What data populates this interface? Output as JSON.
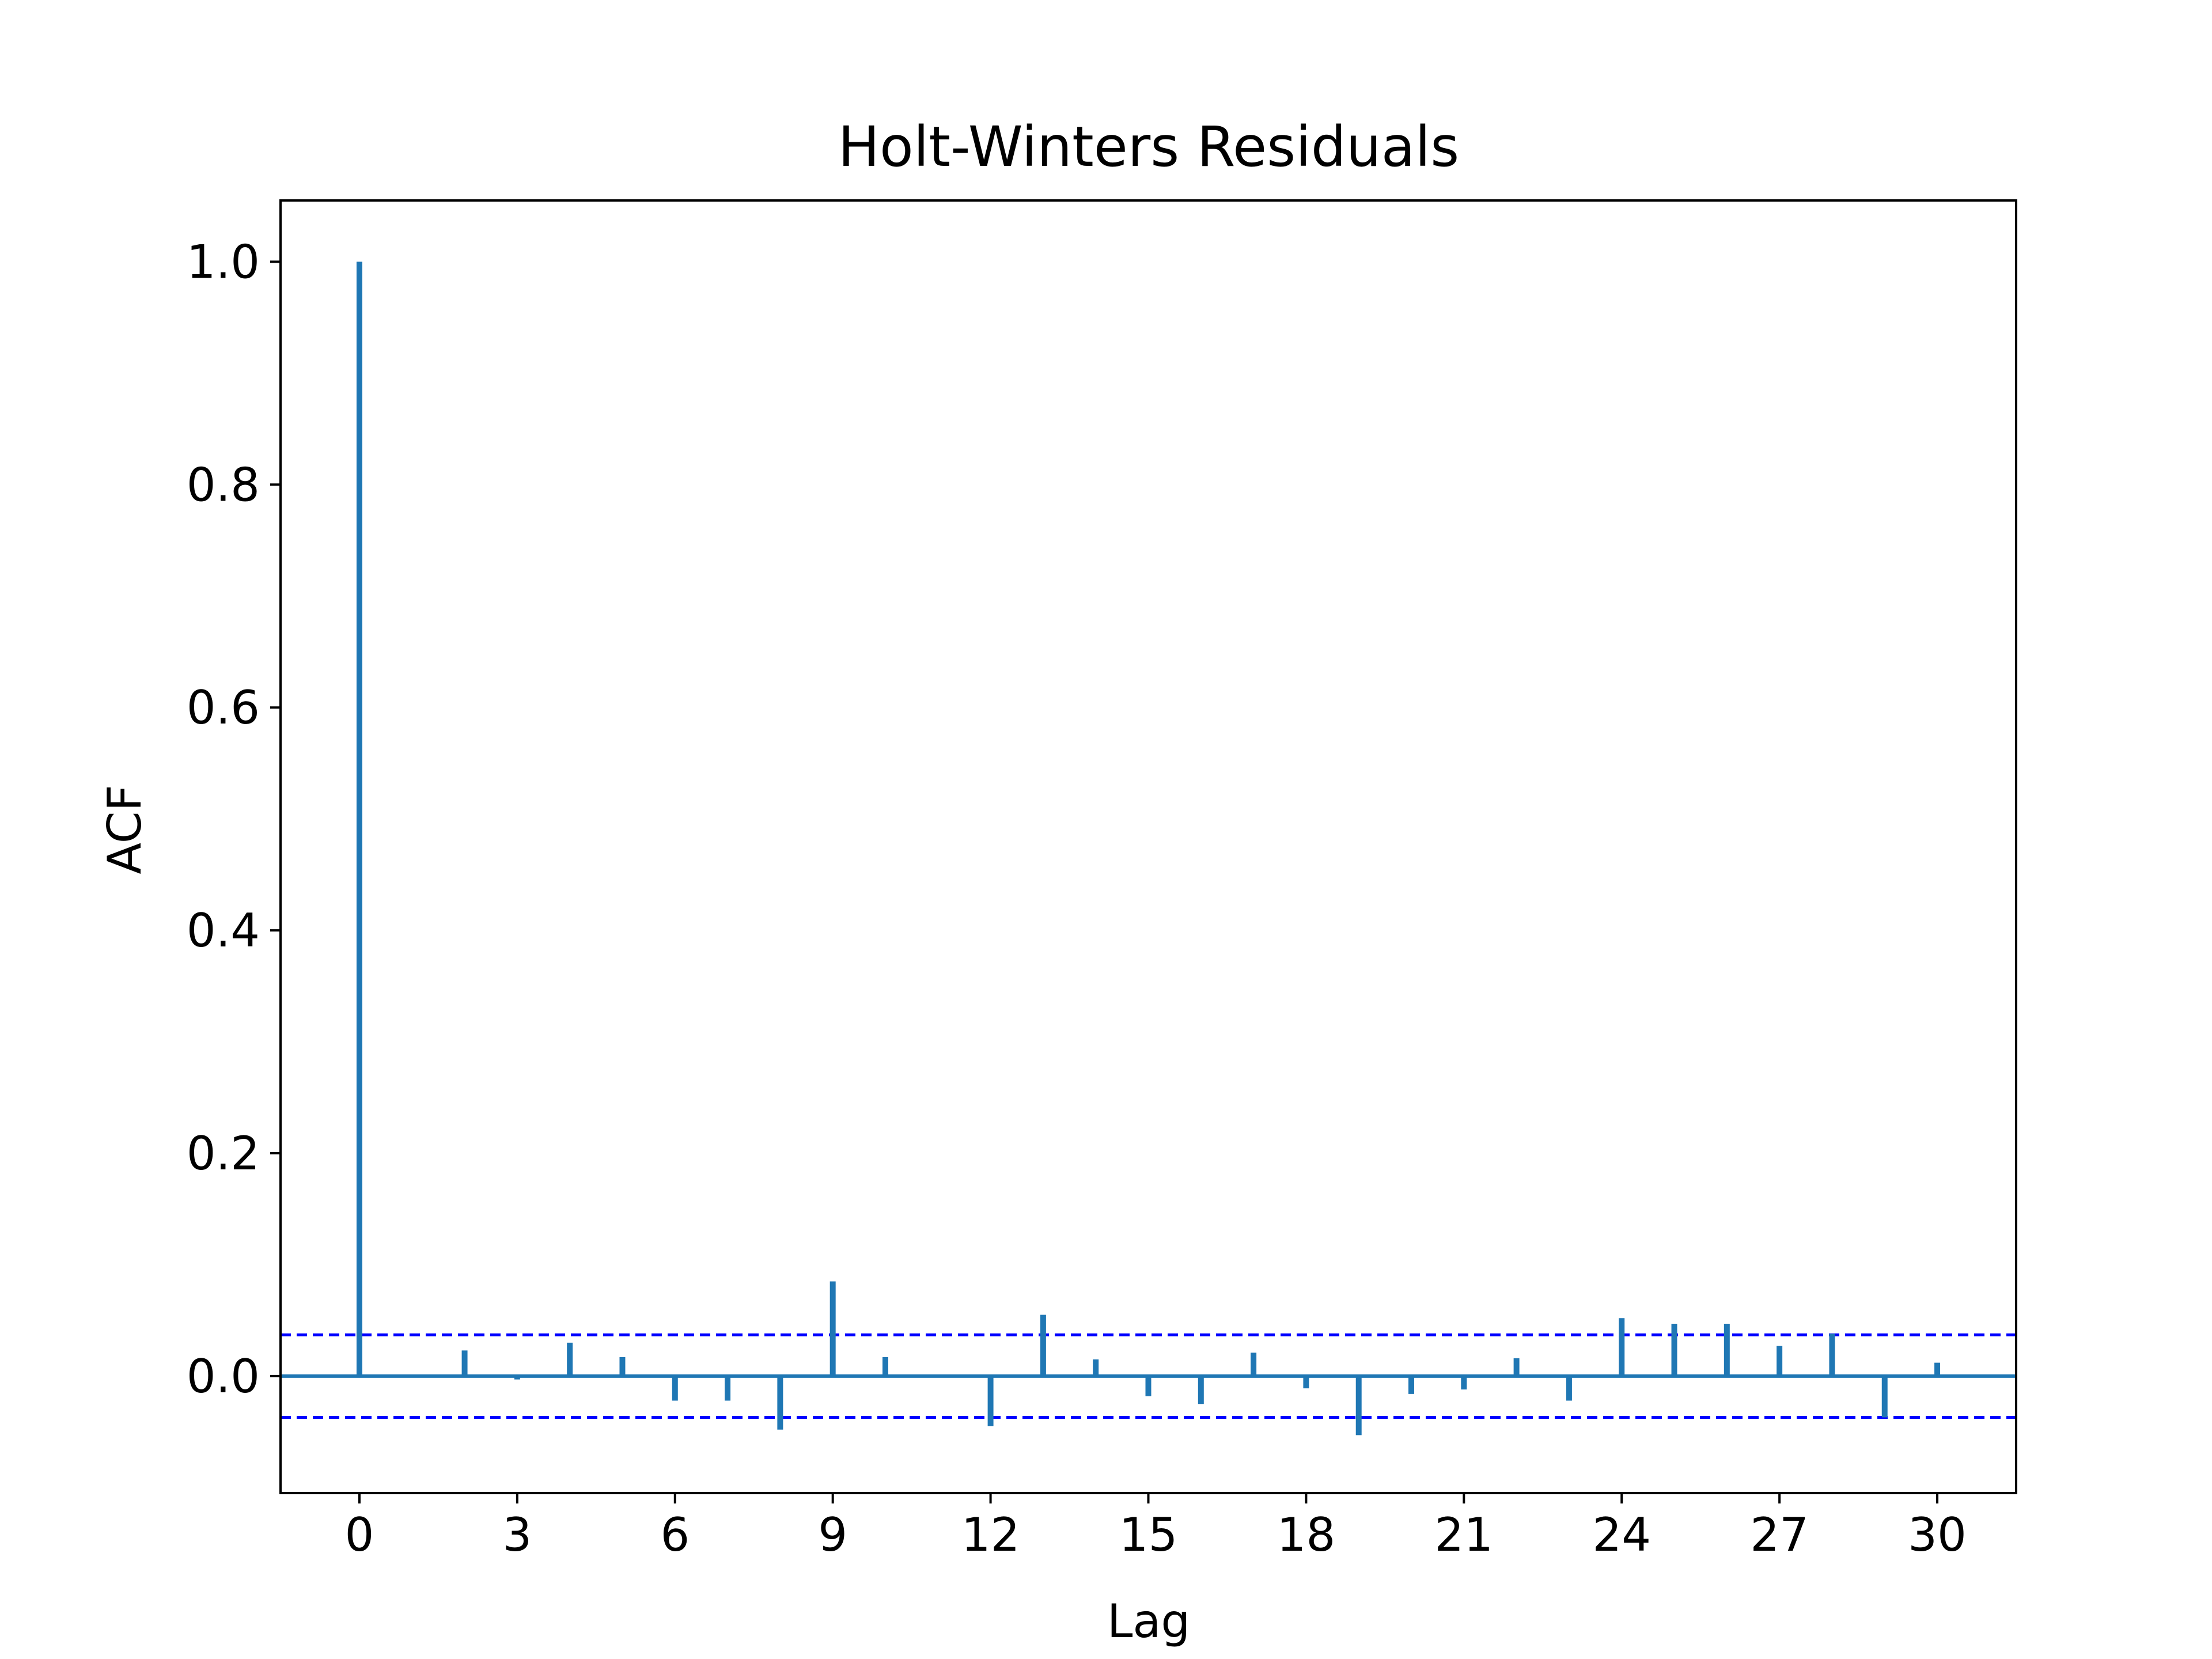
{
  "chart_data": {
    "type": "bar",
    "title": "Holt-Winters Residuals",
    "xlabel": "Lag",
    "ylabel": "ACF",
    "xlim": [
      -1.5,
      31.5
    ],
    "ylim": [
      -0.105,
      1.055
    ],
    "xticks": [
      0,
      3,
      6,
      9,
      12,
      15,
      18,
      21,
      24,
      27,
      30
    ],
    "yticks": [
      0.0,
      0.2,
      0.4,
      0.6,
      0.8,
      1.0
    ],
    "ytick_labels": [
      "0.0",
      "0.2",
      "0.4",
      "0.6",
      "0.8",
      "1.0"
    ],
    "grid": false,
    "lags": [
      0,
      1,
      2,
      3,
      4,
      5,
      6,
      7,
      8,
      9,
      10,
      11,
      12,
      13,
      14,
      15,
      16,
      17,
      18,
      19,
      20,
      21,
      22,
      23,
      24,
      25,
      26,
      27,
      28,
      29,
      30
    ],
    "values": [
      1.0,
      0.0,
      0.023,
      -0.003,
      0.03,
      0.017,
      -0.022,
      -0.022,
      -0.048,
      0.085,
      0.017,
      0.0,
      -0.045,
      0.055,
      0.015,
      -0.018,
      -0.025,
      0.021,
      -0.011,
      -0.053,
      -0.016,
      -0.012,
      0.016,
      -0.022,
      0.052,
      0.047,
      0.047,
      0.027,
      0.038,
      -0.037,
      0.012
    ],
    "confidence_band": [
      -0.037,
      0.037
    ],
    "colors": {
      "stems": "#1f77b4",
      "zero_line": "#1f77b4",
      "confidence": "#0000ff"
    }
  }
}
